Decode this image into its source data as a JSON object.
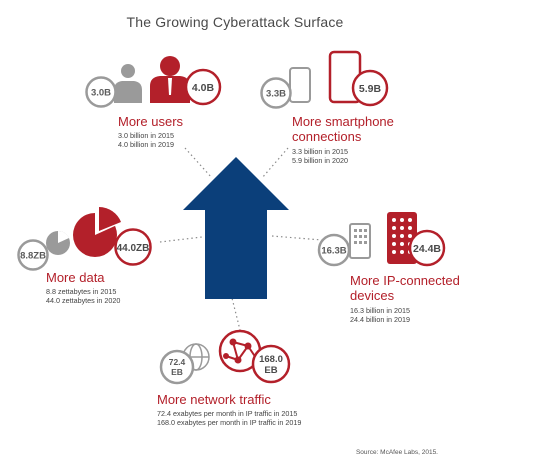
{
  "title": "The Growing Cyberattack Surface",
  "colors": {
    "accent": "#b3202a",
    "gray": "#9a9a9a",
    "arrow": "#0b3f7a"
  },
  "users": {
    "label": "More users",
    "old_value": "3.0B",
    "new_value": "4.0B",
    "line1": "3.0 billion in 2015",
    "line2": "4.0 billion in 2019"
  },
  "smartphones": {
    "label1": "More smartphone",
    "label2": "connections",
    "old_value": "3.3B",
    "new_value": "5.9B",
    "line1": "3.3 billion in 2015",
    "line2": "5.9 billion in 2020"
  },
  "data": {
    "label": "More data",
    "old_value": "8.8ZB",
    "new_value": "44.0ZB",
    "line1": "8.8 zettabytes in 2015",
    "line2": "44.0 zettabytes in 2020"
  },
  "iot": {
    "label1": "More IP-connected",
    "label2": "devices",
    "old_value": "16.3B",
    "new_value": "24.4B",
    "line1": "16.3 billion in 2015",
    "line2": "24.4 billion in 2019"
  },
  "traffic": {
    "label": "More network traffic",
    "old_value_1": "72.4",
    "old_value_2": "EB",
    "new_value_1": "168.0",
    "new_value_2": "EB",
    "line1": "72.4 exabytes per month in IP traffic in 2015",
    "line2": "168.0 exabytes per month in IP traffic in 2019"
  },
  "source": "Source: McAfee Labs, 2015."
}
